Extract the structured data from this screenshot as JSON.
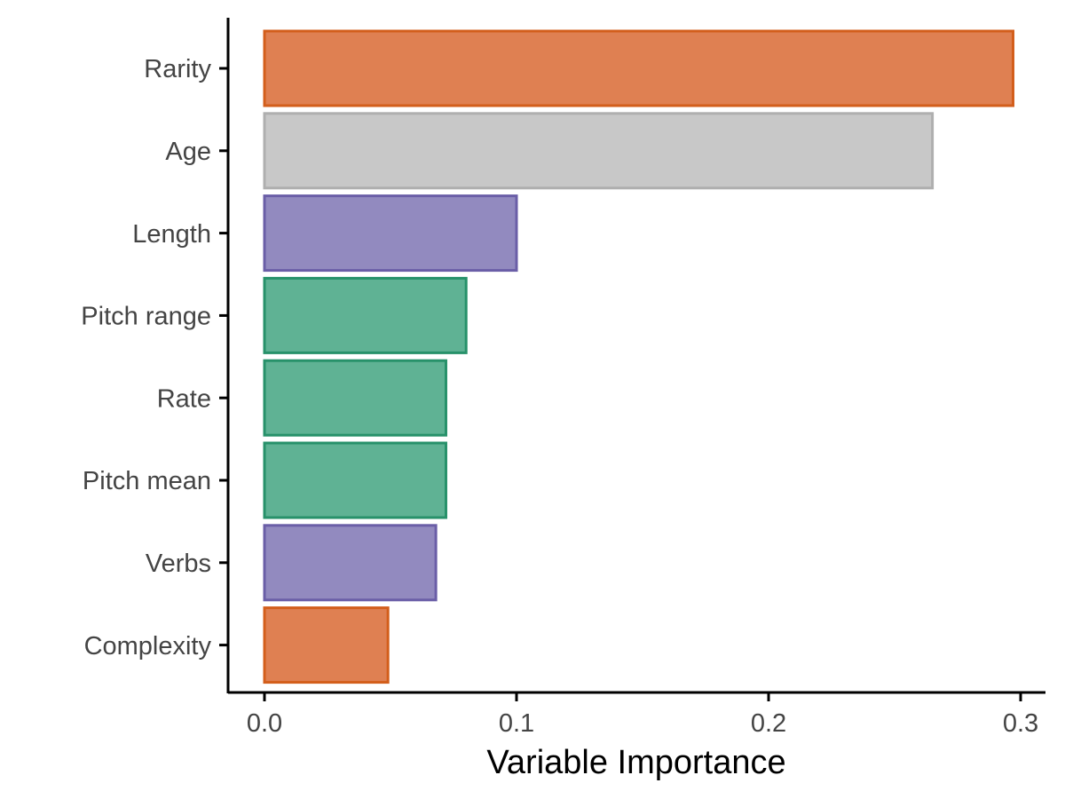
{
  "chart_data": {
    "type": "bar",
    "orientation": "horizontal",
    "title": "",
    "xlabel": "Variable Importance",
    "ylabel": "",
    "xlim": [
      0,
      0.3
    ],
    "xticks": [
      0.0,
      0.1,
      0.2,
      0.3
    ],
    "xtick_labels": [
      "0.0",
      "0.1",
      "0.2",
      "0.3"
    ],
    "grid": false,
    "legend": "none",
    "categories": [
      "Rarity",
      "Age",
      "Length",
      "Pitch range",
      "Rate",
      "Pitch mean",
      "Verbs",
      "Complexity"
    ],
    "values": [
      0.297,
      0.265,
      0.1,
      0.08,
      0.072,
      0.072,
      0.068,
      0.049
    ],
    "bar_colors": [
      {
        "fill": "#DF8052",
        "stroke": "#D35E1B"
      },
      {
        "fill": "#C8C8C8",
        "stroke": "#AFAFAF"
      },
      {
        "fill": "#928ABF",
        "stroke": "#6A5EA7"
      },
      {
        "fill": "#5FB294",
        "stroke": "#27916A"
      },
      {
        "fill": "#5FB294",
        "stroke": "#27916A"
      },
      {
        "fill": "#5FB294",
        "stroke": "#27916A"
      },
      {
        "fill": "#928ABF",
        "stroke": "#6A5EA7"
      },
      {
        "fill": "#DF8052",
        "stroke": "#D35E1B"
      }
    ]
  }
}
